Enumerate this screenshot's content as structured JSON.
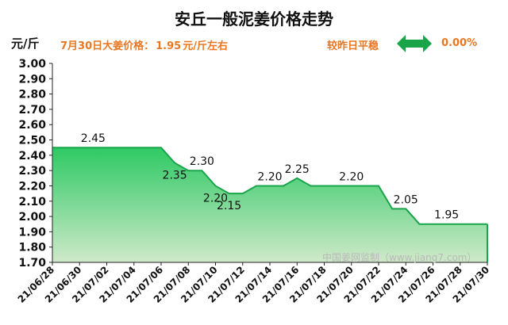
{
  "header": {
    "title": "安丘一般泥姜价格走势",
    "unit": "元/斤",
    "price_date": "7月30日大姜价格：",
    "price_value": "1.95",
    "price_unit": "元/斤左右",
    "compare_label": "较昨日平稳",
    "compare_value": "0.00%",
    "arrow_icon": "double-arrow-icon",
    "arrow_color": "#1aa54a"
  },
  "watermark": "中国姜网监制（www.jiang7.com）",
  "chart_data": {
    "type": "area",
    "title": "安丘一般泥姜价格走势",
    "ylabel": "元/斤",
    "ylim": [
      1.7,
      3.0
    ],
    "yticks": [
      "1.70",
      "1.80",
      "1.90",
      "2.00",
      "2.10",
      "2.20",
      "2.30",
      "2.40",
      "2.50",
      "2.60",
      "2.70",
      "2.80",
      "2.90",
      "3.00"
    ],
    "x_tick_labels": [
      "21/06/28",
      "21/06/30",
      "21/07/02",
      "21/07/04",
      "21/07/06",
      "21/07/08",
      "21/07/10",
      "21/07/12",
      "21/07/14",
      "21/07/16",
      "21/07/18",
      "21/07/20",
      "21/07/22",
      "21/07/24",
      "21/07/26",
      "21/07/28",
      "21/07/30"
    ],
    "x": [
      "21/06/28",
      "21/06/29",
      "21/06/30",
      "21/07/01",
      "21/07/02",
      "21/07/03",
      "21/07/04",
      "21/07/05",
      "21/07/06",
      "21/07/07",
      "21/07/08",
      "21/07/09",
      "21/07/10",
      "21/07/11",
      "21/07/12",
      "21/07/13",
      "21/07/14",
      "21/07/15",
      "21/07/16",
      "21/07/17",
      "21/07/18",
      "21/07/19",
      "21/07/20",
      "21/07/21",
      "21/07/22",
      "21/07/23",
      "21/07/24",
      "21/07/25",
      "21/07/26",
      "21/07/27",
      "21/07/28",
      "21/07/29",
      "21/07/30"
    ],
    "values": [
      2.45,
      2.45,
      2.45,
      2.45,
      2.45,
      2.45,
      2.45,
      2.45,
      2.45,
      2.35,
      2.3,
      2.3,
      2.2,
      2.15,
      2.15,
      2.2,
      2.2,
      2.2,
      2.25,
      2.2,
      2.2,
      2.2,
      2.2,
      2.2,
      2.2,
      2.05,
      2.05,
      1.95,
      1.95,
      1.95,
      1.95,
      1.95,
      1.95
    ],
    "data_labels": [
      {
        "x": "21/07/01",
        "value": "2.45"
      },
      {
        "x": "21/07/07",
        "value": "2.35"
      },
      {
        "x": "21/07/09",
        "value": "2.30"
      },
      {
        "x": "21/07/10",
        "value": "2.20"
      },
      {
        "x": "21/07/11",
        "value": "2.15"
      },
      {
        "x": "21/07/14",
        "value": "2.20"
      },
      {
        "x": "21/07/16",
        "value": "2.25"
      },
      {
        "x": "21/07/20",
        "value": "2.20"
      },
      {
        "x": "21/07/24",
        "value": "2.05"
      },
      {
        "x": "21/07/27",
        "value": "1.95"
      }
    ],
    "line_color": "#1aa54a",
    "fill_top_color": "#2ec964",
    "fill_bottom_color": "#cfe9c9",
    "grid": false,
    "legend": "none"
  }
}
